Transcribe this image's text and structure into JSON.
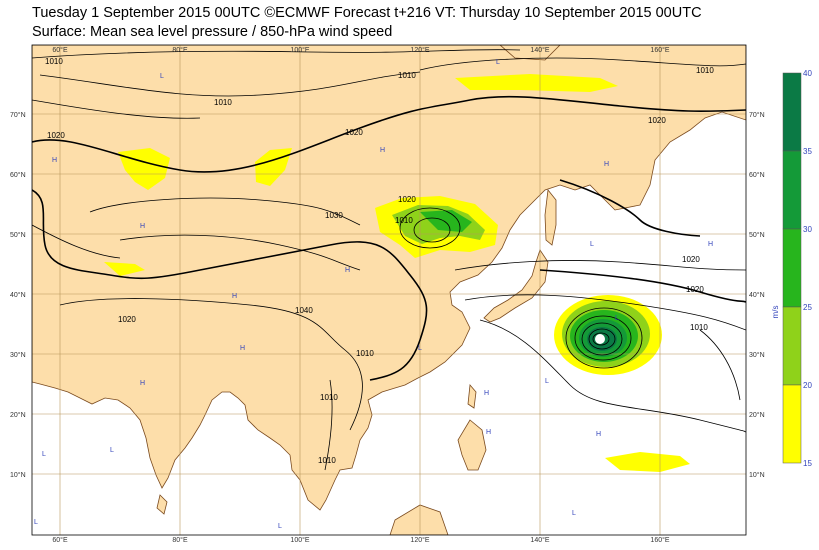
{
  "header": {
    "line1": "Tuesday 1 September 2015 00UTC ©ECMWF Forecast t+216 VT: Thursday 10 September 2015 00UTC",
    "line2": "Surface: Mean sea level pressure / 850-hPa wind speed"
  },
  "map": {
    "lon_labels": [
      "60°E",
      "80°E",
      "100°E",
      "120°E",
      "140°E",
      "160°E"
    ],
    "lat_labels": [
      "70°N",
      "60°N",
      "50°N",
      "40°N",
      "30°N",
      "20°N",
      "10°N"
    ],
    "isobar_labels": [
      "1010",
      "1010",
      "1010",
      "1010",
      "1020",
      "1020",
      "1020",
      "1020",
      "1020",
      "1020",
      "1020",
      "1030",
      "1040",
      "1010",
      "1010",
      "1010",
      "1010",
      "1010"
    ],
    "pressure_centres": [
      "H",
      "H",
      "H",
      "H",
      "H",
      "H",
      "H",
      "H",
      "H",
      "H",
      "H",
      "H",
      "L",
      "L",
      "L",
      "L",
      "L",
      "L",
      "L",
      "L",
      "L",
      "L",
      "L"
    ],
    "colors": {
      "land": "#fddeaa",
      "sea": "#ffffff",
      "grid": "#b8965a",
      "coast": "#7a4a1e",
      "isobar": "#000000",
      "centre_text": "#3344bb"
    }
  },
  "colorbar": {
    "unit": "m/s",
    "ticks": [
      "40",
      "35",
      "30",
      "25",
      "20",
      "15"
    ],
    "bands": [
      {
        "from": 35,
        "to": 40,
        "color": "#0b7a45"
      },
      {
        "from": 30,
        "to": 35,
        "color": "#149a38"
      },
      {
        "from": 25,
        "to": 30,
        "color": "#27b51d"
      },
      {
        "from": 20,
        "to": 25,
        "color": "#8fd21a"
      },
      {
        "from": 15,
        "to": 20,
        "color": "#ffff00"
      }
    ]
  }
}
